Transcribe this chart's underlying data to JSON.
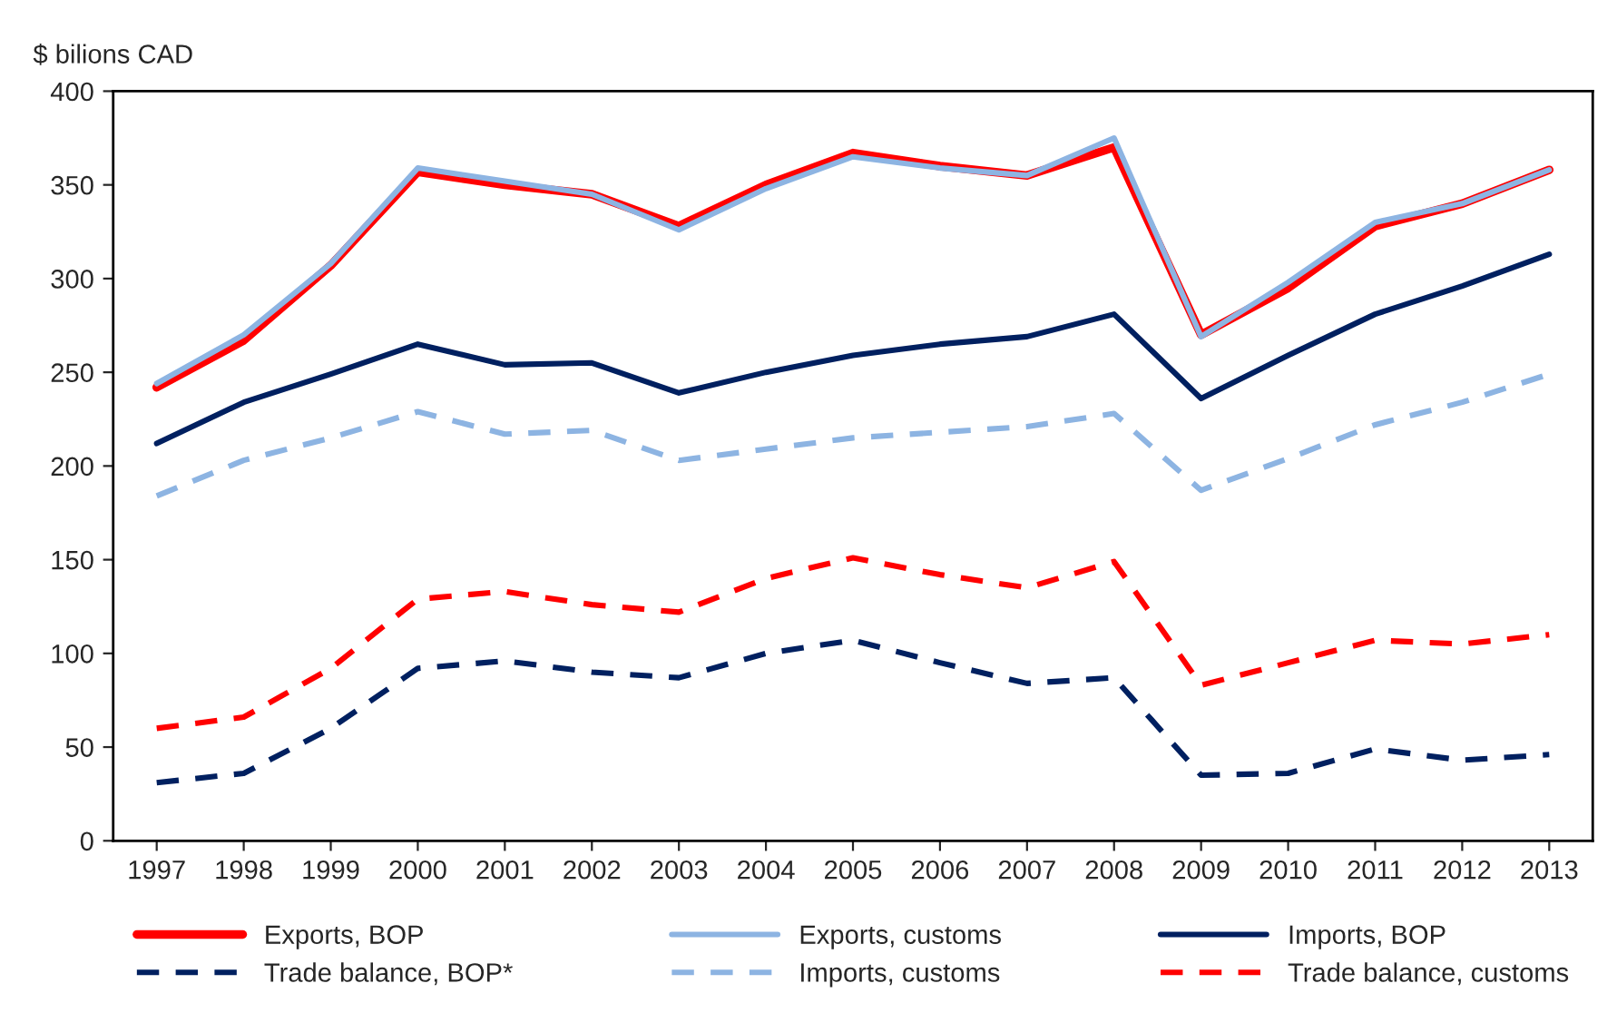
{
  "chart_data": {
    "type": "line",
    "ylabel": "$ bilions CAD",
    "categories": [
      "1997",
      "1998",
      "1999",
      "2000",
      "2001",
      "2002",
      "2003",
      "2004",
      "2005",
      "2006",
      "2007",
      "2008",
      "2009",
      "2010",
      "2011",
      "2012",
      "2013"
    ],
    "ylim": [
      0,
      400
    ],
    "yticks": [
      0,
      50,
      100,
      150,
      200,
      250,
      300,
      350,
      400
    ],
    "grid": false,
    "legend": "bottom",
    "marker": "none",
    "series": [
      {
        "name": "Exports, BOP",
        "color": "#ff0000",
        "line_style": "solid",
        "values": [
          242,
          267,
          307,
          357,
          350,
          345,
          328,
          350,
          367,
          360,
          355,
          370,
          270,
          295,
          328,
          340,
          358
        ]
      },
      {
        "name": "Exports, customs",
        "color": "#8db4e2",
        "line_style": "solid",
        "values": [
          244,
          270,
          308,
          359,
          352,
          345,
          326,
          348,
          365,
          359,
          355,
          375,
          269,
          298,
          330,
          340,
          358
        ]
      },
      {
        "name": "Imports, BOP",
        "color": "#002060",
        "line_style": "solid",
        "values": [
          212,
          234,
          249,
          265,
          254,
          255,
          239,
          250,
          259,
          265,
          269,
          281,
          236,
          259,
          281,
          296,
          313
        ]
      },
      {
        "name": "Trade balance, BOP*",
        "color": "#002060",
        "line_style": "dashed",
        "values": [
          31,
          36,
          60,
          92,
          96,
          90,
          87,
          100,
          107,
          95,
          84,
          87,
          35,
          36,
          49,
          43,
          46
        ]
      },
      {
        "name": "Imports, customs",
        "color": "#8db4e2",
        "line_style": "dashed",
        "values": [
          184,
          203,
          215,
          229,
          217,
          219,
          203,
          209,
          215,
          218,
          221,
          228,
          187,
          204,
          222,
          234,
          249
        ]
      },
      {
        "name": "Trade balance, customs",
        "color": "#ff0000",
        "line_style": "dashed",
        "values": [
          60,
          66,
          92,
          129,
          133,
          126,
          122,
          140,
          151,
          142,
          135,
          149,
          83,
          95,
          107,
          105,
          110
        ]
      }
    ]
  }
}
